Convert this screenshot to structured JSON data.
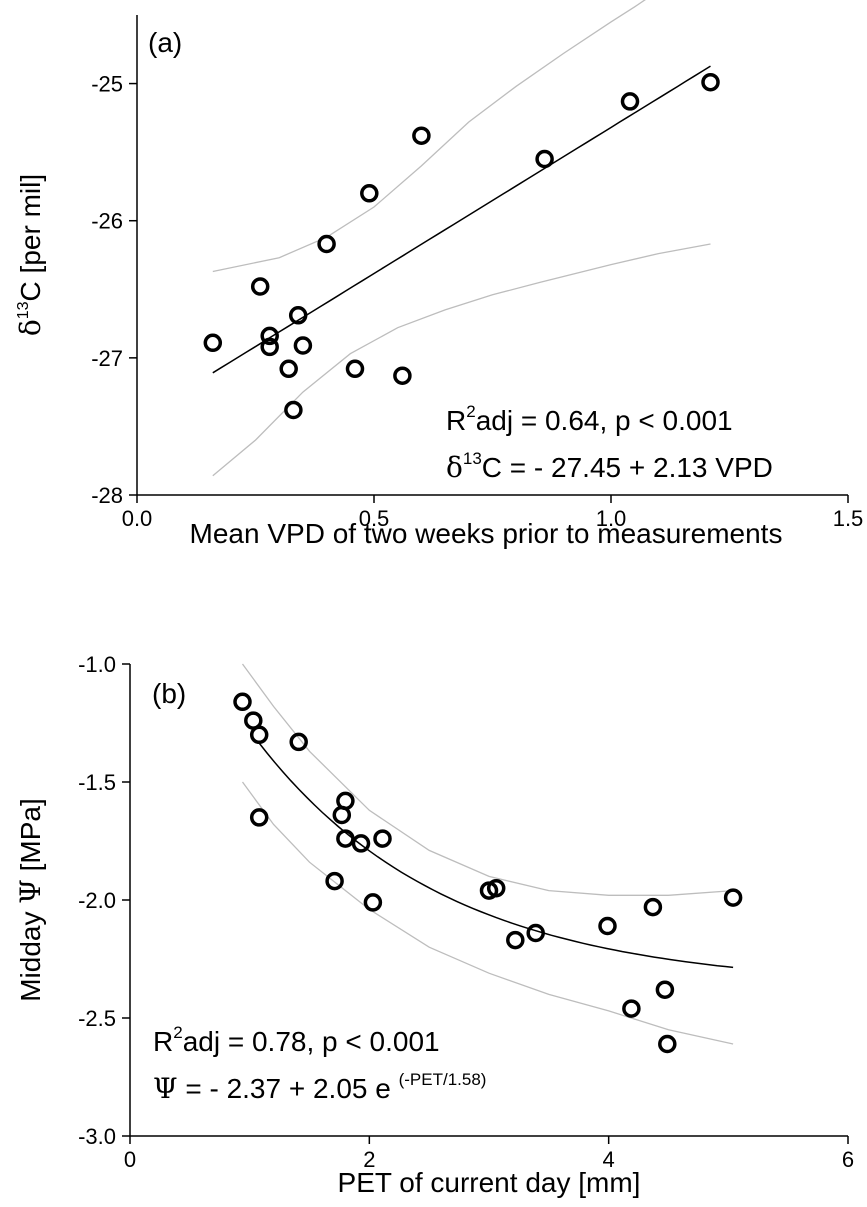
{
  "chart_data": [
    {
      "type": "scatter",
      "panel_label": "(a)",
      "xlabel": "Mean VPD of two weeks prior to measurements",
      "ylabel_prefix": "δ",
      "ylabel_sup": "13",
      "ylabel_suffix": "C [per mil]",
      "xlim": [
        0.0,
        1.5
      ],
      "ylim": [
        -28,
        -24.5
      ],
      "x_ticks": [
        0.0,
        0.5,
        1.0,
        1.5
      ],
      "x_tick_labels": [
        "0.0",
        "0.5",
        "1.0",
        "1.5"
      ],
      "y_ticks": [
        -28,
        -27,
        -26,
        -25
      ],
      "y_tick_labels": [
        "-28",
        "-27",
        "-26",
        "-25"
      ],
      "points": [
        {
          "x": 0.16,
          "y": -26.89
        },
        {
          "x": 0.26,
          "y": -26.48
        },
        {
          "x": 0.28,
          "y": -26.84
        },
        {
          "x": 0.28,
          "y": -26.92
        },
        {
          "x": 0.32,
          "y": -27.08
        },
        {
          "x": 0.33,
          "y": -27.38
        },
        {
          "x": 0.34,
          "y": -26.69
        },
        {
          "x": 0.35,
          "y": -26.91
        },
        {
          "x": 0.4,
          "y": -26.17
        },
        {
          "x": 0.46,
          "y": -27.08
        },
        {
          "x": 0.49,
          "y": -25.8
        },
        {
          "x": 0.56,
          "y": -27.13
        },
        {
          "x": 0.6,
          "y": -25.38
        },
        {
          "x": 0.86,
          "y": -25.55
        },
        {
          "x": 1.04,
          "y": -25.13
        },
        {
          "x": 1.21,
          "y": -24.99
        }
      ],
      "fit": {
        "intercept": -27.45,
        "slope": 2.13,
        "x_range": [
          0.16,
          1.21
        ]
      },
      "ci_upper": [
        {
          "x": 0.16,
          "y": -26.37
        },
        {
          "x": 0.3,
          "y": -26.27
        },
        {
          "x": 0.4,
          "y": -26.12
        },
        {
          "x": 0.5,
          "y": -25.9
        },
        {
          "x": 0.6,
          "y": -25.6
        },
        {
          "x": 0.7,
          "y": -25.28
        },
        {
          "x": 0.8,
          "y": -25.02
        },
        {
          "x": 0.9,
          "y": -24.78
        },
        {
          "x": 1.0,
          "y": -24.55
        },
        {
          "x": 1.05,
          "y": -24.44
        },
        {
          "x": 1.11,
          "y": -24.3
        }
      ],
      "ci_lower": [
        {
          "x": 0.16,
          "y": -27.86
        },
        {
          "x": 0.25,
          "y": -27.6
        },
        {
          "x": 0.35,
          "y": -27.25
        },
        {
          "x": 0.45,
          "y": -26.97
        },
        {
          "x": 0.55,
          "y": -26.78
        },
        {
          "x": 0.65,
          "y": -26.65
        },
        {
          "x": 0.75,
          "y": -26.54
        },
        {
          "x": 0.85,
          "y": -26.45
        },
        {
          "x": 1.0,
          "y": -26.32
        },
        {
          "x": 1.1,
          "y": -26.24
        },
        {
          "x": 1.21,
          "y": -26.17
        }
      ],
      "annotation_line1": {
        "pre": "R",
        "sup": "2",
        "post": "adj = 0.64, p < 0.001"
      },
      "annotation_line2": {
        "pre": "δ",
        "sup": "13",
        "post": "C = - 27.45 + 2.13 VPD"
      }
    },
    {
      "type": "scatter",
      "panel_label": "(b)",
      "xlabel": "PET of current day [mm]",
      "ylabel_prefix": "Midday ",
      "ylabel_greek": "Ψ",
      "ylabel_suffix": " [MPa]",
      "xlim": [
        0,
        6
      ],
      "ylim": [
        -3.0,
        -1.0
      ],
      "x_ticks": [
        0,
        2,
        4,
        6
      ],
      "x_tick_labels": [
        "0",
        "2",
        "4",
        "6"
      ],
      "y_ticks": [
        -3.0,
        -2.5,
        -2.0,
        -1.5,
        -1.0
      ],
      "y_tick_labels": [
        "-3.0",
        "-2.5",
        "-2.0",
        "-1.5",
        "-1.0"
      ],
      "points": [
        {
          "x": 0.94,
          "y": -1.16
        },
        {
          "x": 1.03,
          "y": -1.24
        },
        {
          "x": 1.08,
          "y": -1.3
        },
        {
          "x": 1.08,
          "y": -1.65
        },
        {
          "x": 1.41,
          "y": -1.33
        },
        {
          "x": 1.71,
          "y": -1.92
        },
        {
          "x": 1.77,
          "y": -1.64
        },
        {
          "x": 1.8,
          "y": -1.58
        },
        {
          "x": 1.8,
          "y": -1.74
        },
        {
          "x": 1.93,
          "y": -1.76
        },
        {
          "x": 2.03,
          "y": -2.01
        },
        {
          "x": 2.11,
          "y": -1.74
        },
        {
          "x": 3.0,
          "y": -1.96
        },
        {
          "x": 3.06,
          "y": -1.95
        },
        {
          "x": 3.22,
          "y": -2.17
        },
        {
          "x": 3.39,
          "y": -2.14
        },
        {
          "x": 3.99,
          "y": -2.11
        },
        {
          "x": 4.19,
          "y": -2.46
        },
        {
          "x": 4.37,
          "y": -2.03
        },
        {
          "x": 4.47,
          "y": -2.38
        },
        {
          "x": 4.49,
          "y": -2.61
        },
        {
          "x": 5.04,
          "y": -1.99
        }
      ],
      "fit": {
        "a": -2.37,
        "b": 2.05,
        "c": 1.58,
        "x_range": [
          1.08,
          5.04
        ]
      },
      "ci_upper": [
        {
          "x": 0.94,
          "y": -1.0
        },
        {
          "x": 1.2,
          "y": -1.18
        },
        {
          "x": 1.5,
          "y": -1.37
        },
        {
          "x": 2.0,
          "y": -1.62
        },
        {
          "x": 2.5,
          "y": -1.79
        },
        {
          "x": 3.0,
          "y": -1.9
        },
        {
          "x": 3.5,
          "y": -1.96
        },
        {
          "x": 4.0,
          "y": -1.98
        },
        {
          "x": 4.5,
          "y": -1.98
        },
        {
          "x": 5.04,
          "y": -1.96
        }
      ],
      "ci_lower": [
        {
          "x": 0.94,
          "y": -1.5
        },
        {
          "x": 1.2,
          "y": -1.68
        },
        {
          "x": 1.5,
          "y": -1.84
        },
        {
          "x": 2.0,
          "y": -2.04
        },
        {
          "x": 2.5,
          "y": -2.2
        },
        {
          "x": 3.0,
          "y": -2.31
        },
        {
          "x": 3.5,
          "y": -2.4
        },
        {
          "x": 4.0,
          "y": -2.47
        },
        {
          "x": 4.5,
          "y": -2.55
        },
        {
          "x": 5.04,
          "y": -2.61
        }
      ],
      "annotation_line1": {
        "pre": "R",
        "sup": "2",
        "post": "adj = 0.78, p < 0.001"
      },
      "annotation_line2": {
        "pre": "Ψ",
        "post": " = - 2.37 + 2.05 e ",
        "sup": "(-PET/1.58)"
      }
    }
  ]
}
